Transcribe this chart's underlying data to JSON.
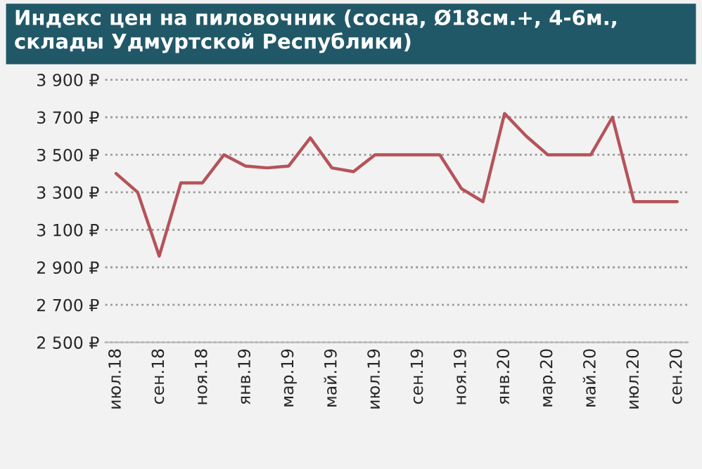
{
  "chart_data": {
    "type": "line",
    "title": "Индекс цен на пиловочник (сосна, Ø18см.+, 4-6м., склады Удмуртской Республики)",
    "categories": [
      "июл.18",
      null,
      "сен.18",
      null,
      "ноя.18",
      null,
      "янв.19",
      null,
      "мар.19",
      null,
      "май.19",
      null,
      "июл.19",
      null,
      "сен.19",
      null,
      "ноя.19",
      null,
      "янв.20",
      null,
      "мар.20",
      null,
      "май.20",
      null,
      "июл.20",
      null,
      "сен.20"
    ],
    "series": [
      {
        "color": "#b5535a",
        "values": [
          3400,
          3300,
          2960,
          3350,
          3350,
          3500,
          3440,
          3430,
          3440,
          3590,
          3430,
          3410,
          3500,
          3500,
          3500,
          3500,
          3320,
          3250,
          3720,
          3600,
          3500,
          3500,
          3500,
          3700,
          3250,
          3250,
          3250
        ]
      }
    ],
    "ylim": [
      2500,
      3900
    ],
    "yticks": [
      {
        "value": 2500,
        "label": "2 500 ₽"
      },
      {
        "value": 2700,
        "label": "2 700 ₽"
      },
      {
        "value": 2900,
        "label": "2 900 ₽"
      },
      {
        "value": 3100,
        "label": "3 100 ₽"
      },
      {
        "value": 3300,
        "label": "3 300 ₽"
      },
      {
        "value": 3500,
        "label": "3 500 ₽"
      },
      {
        "value": 3700,
        "label": "3 700 ₽"
      },
      {
        "value": 3900,
        "label": "3 900 ₽"
      }
    ],
    "grid": "y",
    "legend": false,
    "marker": "none",
    "line_style": "solid"
  }
}
